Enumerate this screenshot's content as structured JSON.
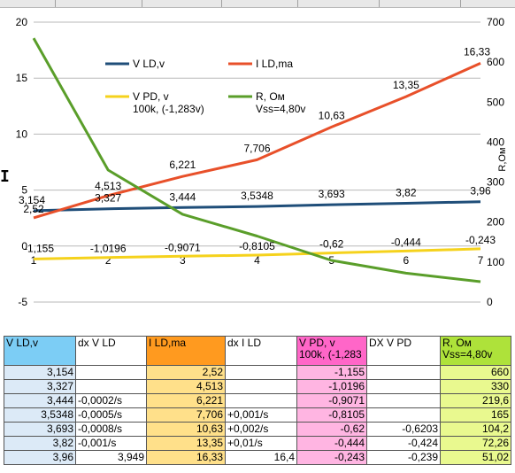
{
  "chart_data": {
    "type": "line",
    "x": [
      1,
      2,
      3,
      4,
      5,
      6,
      7
    ],
    "left_axis": {
      "min": -5,
      "max": 20,
      "ticks": [
        -5,
        0,
        5,
        10,
        15,
        20
      ]
    },
    "right_axis": {
      "min": 0,
      "max": 700,
      "ticks": [
        0,
        100,
        200,
        300,
        400,
        500,
        600,
        700
      ],
      "label": "R,Ом"
    },
    "x_ticks": [
      "1",
      "2",
      "3",
      "4",
      "5",
      "6",
      "7"
    ],
    "grid": "horizontal",
    "legend_placement": "inside-top-left",
    "series": [
      {
        "name": "V LD,v",
        "axis": "left",
        "color": "#1f4e79",
        "values": [
          3.154,
          3.327,
          3.444,
          3.5348,
          3.693,
          3.82,
          3.96
        ],
        "labels": [
          "3,154",
          "3,327",
          "3,444",
          "3,5348",
          "3,693",
          "3,82",
          "3,96"
        ]
      },
      {
        "name": "I LD,ma",
        "axis": "left",
        "color": "#e8502a",
        "values": [
          2.52,
          4.513,
          6.221,
          7.706,
          10.63,
          13.35,
          16.33
        ],
        "labels": [
          "2,52",
          "4,513",
          "6,221",
          "7,706",
          "10,63",
          "13,35",
          "16,33"
        ]
      },
      {
        "name": "V PD, v",
        "name_line2": "100k, (-1,283v)",
        "axis": "left",
        "color": "#f5d21c",
        "values": [
          -1.155,
          -1.0196,
          -0.9071,
          -0.8105,
          -0.62,
          -0.444,
          -0.243
        ],
        "labels": [
          "-1,155",
          "-1,0196",
          "-0,9071",
          "-0,8105",
          "-0,62",
          "-0,444",
          "-0,243"
        ]
      },
      {
        "name": "R, Ом",
        "name_line2": "Vss=4,80v",
        "axis": "right",
        "color": "#5a9e2a",
        "values": [
          660,
          330,
          219.6,
          165,
          104.2,
          72.26,
          51.02
        ]
      }
    ]
  },
  "table": {
    "headers": [
      [
        "V LD,v"
      ],
      [
        "dx V LD"
      ],
      [
        "I LD,ma"
      ],
      [
        "dx I LD"
      ],
      [
        "V PD, v",
        "100k, (-1,283"
      ],
      [
        "DX V PD"
      ],
      [
        "R, Ом",
        "Vss=4,80v"
      ]
    ],
    "rows": [
      [
        "3,154",
        "",
        "2,52",
        "",
        "-1,155",
        "",
        "660"
      ],
      [
        "3,327",
        "",
        "4,513",
        "",
        "-1,0196",
        "",
        "330"
      ],
      [
        "3,444",
        "-0,0002/s",
        "6,221",
        "",
        "-0,9071",
        "",
        "219,6"
      ],
      [
        "3,5348",
        "-0,0005/s",
        "7,706",
        "+0,001/s",
        "-0,8105",
        "",
        "165"
      ],
      [
        "3,693",
        "-0,0008/s",
        "10,63",
        "+0,002/s",
        "-0,62",
        "-0,6203",
        "104,2"
      ],
      [
        "3,82",
        "-0,001/s",
        "13,35",
        "+0,01/s",
        "-0,444",
        "-0,424",
        "72,26"
      ],
      [
        "3,96",
        "3,949",
        "16,33",
        "16,4",
        "-0,243",
        "-0,239",
        "51,02"
      ]
    ]
  }
}
